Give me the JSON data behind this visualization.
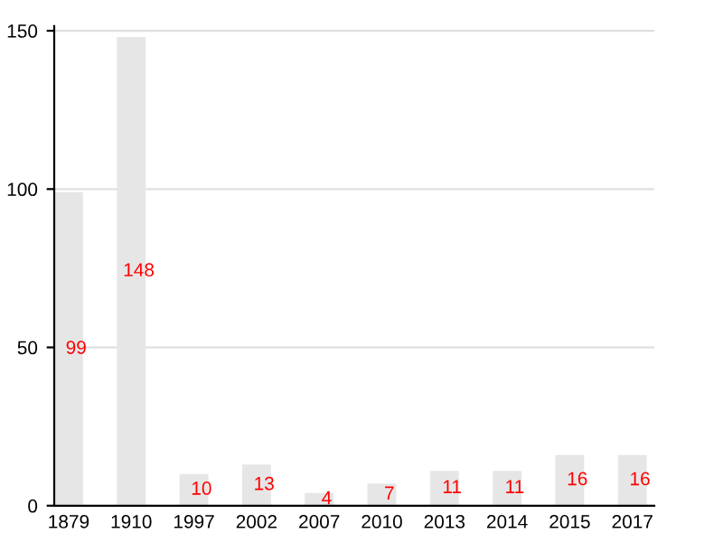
{
  "chart_data": {
    "type": "bar",
    "categories": [
      "1879",
      "1910",
      "1997",
      "2002",
      "2007",
      "2010",
      "2013",
      "2014",
      "2015",
      "2017"
    ],
    "values": [
      99,
      148,
      10,
      13,
      4,
      7,
      11,
      11,
      16,
      16
    ],
    "color": "#e6e6e6",
    "ylim": [
      0,
      151.5
    ],
    "yticks": [
      0,
      50,
      100,
      150
    ],
    "grid": "y",
    "data_labels": true
  }
}
